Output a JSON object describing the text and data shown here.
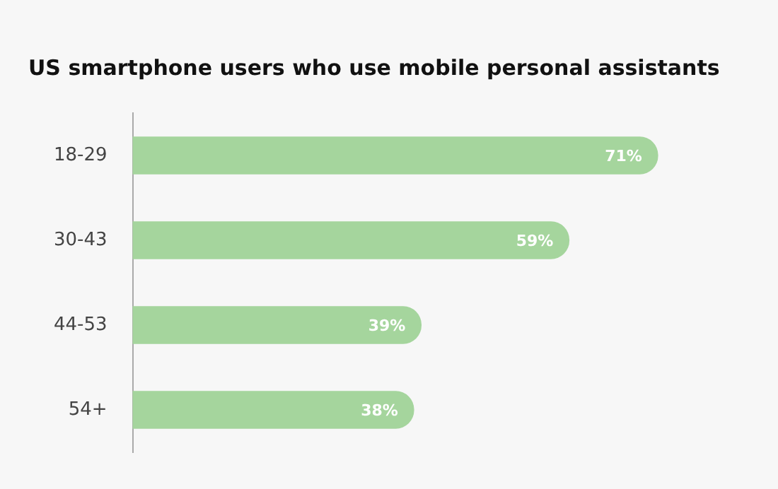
{
  "chart_data": {
    "type": "bar",
    "orientation": "horizontal",
    "title": "US smartphone users who use mobile personal assistants",
    "categories": [
      "18-29",
      "30-43",
      "44-53",
      "54+"
    ],
    "values": [
      71,
      59,
      39,
      38
    ],
    "color": "#a5d59d",
    "value_labels": [
      "71%",
      "59%",
      "39%",
      "38%"
    ],
    "grid": false,
    "legend": false
  }
}
